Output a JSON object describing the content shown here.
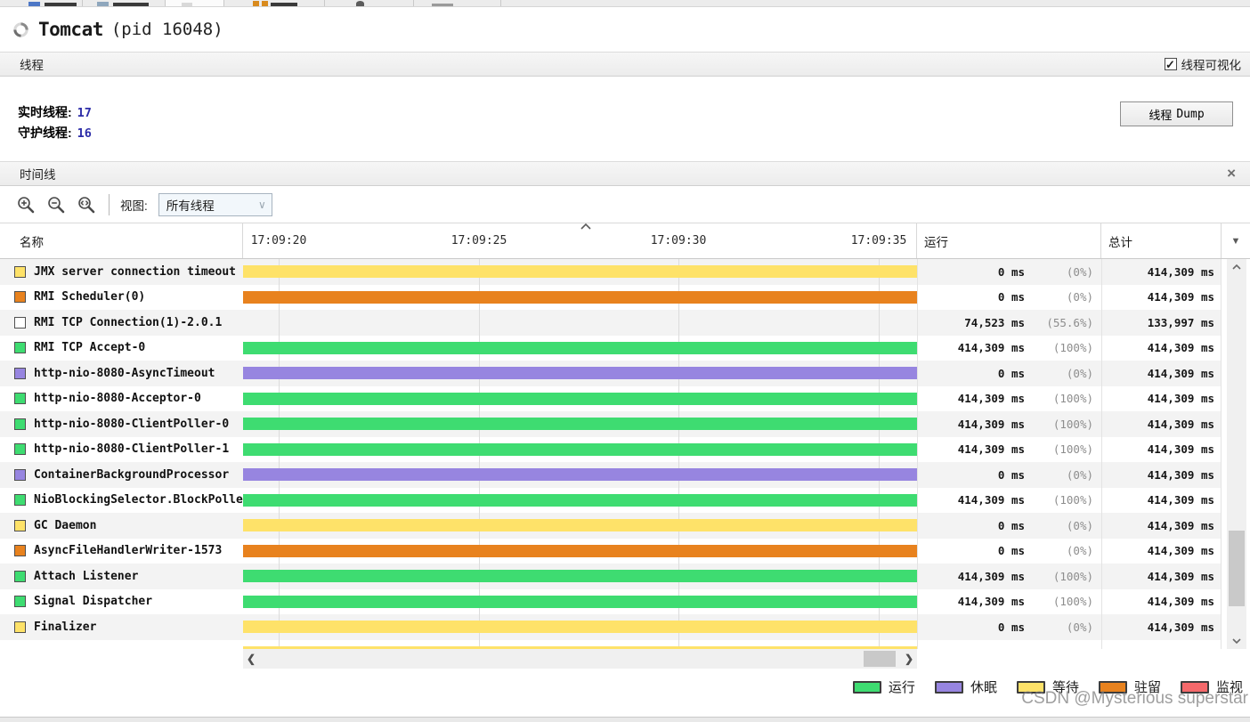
{
  "title": {
    "app_name": "Tomcat",
    "pid": "(pid 16048)"
  },
  "threads_panel": {
    "header": "线程",
    "visualization_checkbox": {
      "label": "线程可视化",
      "checked": true,
      "checkmark": "✓"
    },
    "live_threads_label": "实时线程:",
    "live_threads_value": "17",
    "daemon_threads_label": "守护线程:",
    "daemon_threads_value": "16",
    "dump_button_label_cn": "线程",
    "dump_button_label_en": "Dump"
  },
  "timeline_panel": {
    "header": "时间线",
    "close_label": "×",
    "toolbar": {
      "view_label": "视图:",
      "view_selected": "所有线程"
    },
    "table": {
      "name_header": "名称",
      "run_header": "运行",
      "total_header": "总计",
      "timestamps": [
        "17:09:20",
        "17:09:25",
        "17:09:30",
        "17:09:35"
      ]
    }
  },
  "state_colors": {
    "run": "#3edc71",
    "sleep": "#9785e0",
    "wait": "#fee269",
    "park": "#e8821e",
    "monitor": "#f5696b",
    "none": "#ffffff"
  },
  "threads": [
    {
      "name": "JMX server connection timeout",
      "state": "wait",
      "has_bar": true,
      "run": "0 ms",
      "run_pct": "(0%)",
      "total": "414,309 ms"
    },
    {
      "name": "RMI Scheduler(0)",
      "state": "park",
      "has_bar": true,
      "run": "0 ms",
      "run_pct": "(0%)",
      "total": "414,309 ms"
    },
    {
      "name": "RMI TCP Connection(1)-2.0.1",
      "state": "none",
      "has_bar": false,
      "run": "74,523 ms",
      "run_pct": "(55.6%)",
      "total": "133,997 ms"
    },
    {
      "name": "RMI TCP Accept-0",
      "state": "run",
      "has_bar": true,
      "run": "414,309 ms",
      "run_pct": "(100%)",
      "total": "414,309 ms"
    },
    {
      "name": "http-nio-8080-AsyncTimeout",
      "state": "sleep",
      "has_bar": true,
      "run": "0 ms",
      "run_pct": "(0%)",
      "total": "414,309 ms"
    },
    {
      "name": "http-nio-8080-Acceptor-0",
      "state": "run",
      "has_bar": true,
      "run": "414,309 ms",
      "run_pct": "(100%)",
      "total": "414,309 ms"
    },
    {
      "name": "http-nio-8080-ClientPoller-0",
      "state": "run",
      "has_bar": true,
      "run": "414,309 ms",
      "run_pct": "(100%)",
      "total": "414,309 ms"
    },
    {
      "name": "http-nio-8080-ClientPoller-1",
      "state": "run",
      "has_bar": true,
      "run": "414,309 ms",
      "run_pct": "(100%)",
      "total": "414,309 ms"
    },
    {
      "name": "ContainerBackgroundProcessor",
      "state": "sleep",
      "has_bar": true,
      "run": "0 ms",
      "run_pct": "(0%)",
      "total": "414,309 ms"
    },
    {
      "name": "NioBlockingSelector.BlockPoller",
      "state": "run",
      "has_bar": true,
      "run": "414,309 ms",
      "run_pct": "(100%)",
      "total": "414,309 ms"
    },
    {
      "name": "GC Daemon",
      "state": "wait",
      "has_bar": true,
      "run": "0 ms",
      "run_pct": "(0%)",
      "total": "414,309 ms"
    },
    {
      "name": "AsyncFileHandlerWriter-1573",
      "state": "park",
      "has_bar": true,
      "run": "0 ms",
      "run_pct": "(0%)",
      "total": "414,309 ms"
    },
    {
      "name": "Attach Listener",
      "state": "run",
      "has_bar": true,
      "run": "414,309 ms",
      "run_pct": "(100%)",
      "total": "414,309 ms"
    },
    {
      "name": "Signal Dispatcher",
      "state": "run",
      "has_bar": true,
      "run": "414,309 ms",
      "run_pct": "(100%)",
      "total": "414,309 ms"
    },
    {
      "name": "Finalizer",
      "state": "wait",
      "has_bar": true,
      "run": "0 ms",
      "run_pct": "(0%)",
      "total": "414,309 ms"
    }
  ],
  "partial_row_state": "wait",
  "legend": [
    {
      "label": "运行",
      "state": "run"
    },
    {
      "label": "休眠",
      "state": "sleep"
    },
    {
      "label": "等待",
      "state": "wait"
    },
    {
      "label": "驻留",
      "state": "park"
    },
    {
      "label": "监视",
      "state": "monitor"
    }
  ],
  "watermark": "CSDN @Mysterious superstar"
}
